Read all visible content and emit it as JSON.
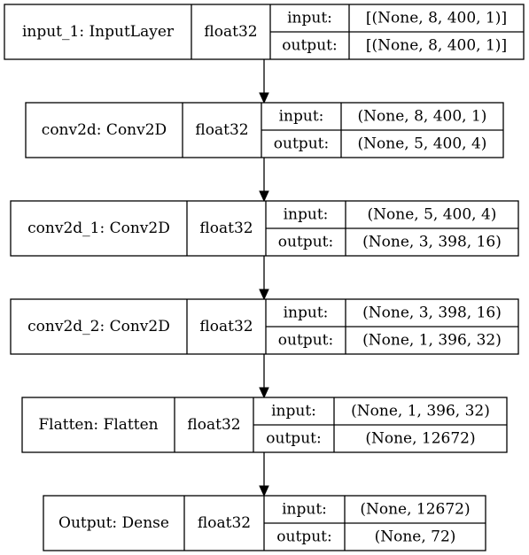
{
  "layers": [
    {
      "name": "input_1: InputLayer",
      "dtype": "float32",
      "input_label": "input:",
      "output_label": "output:",
      "input_shape": "[(None, 8, 400, 1)]",
      "output_shape": "[(None, 8, 400, 1)]"
    },
    {
      "name": "conv2d: Conv2D",
      "dtype": "float32",
      "input_label": "input:",
      "output_label": "output:",
      "input_shape": "(None, 8, 400, 1)",
      "output_shape": "(None, 5, 400, 4)"
    },
    {
      "name": "conv2d_1: Conv2D",
      "dtype": "float32",
      "input_label": "input:",
      "output_label": "output:",
      "input_shape": "(None, 5, 400, 4)",
      "output_shape": "(None, 3, 398, 16)"
    },
    {
      "name": "conv2d_2: Conv2D",
      "dtype": "float32",
      "input_label": "input:",
      "output_label": "output:",
      "input_shape": "(None, 3, 398, 16)",
      "output_shape": "(None, 1, 396, 32)"
    },
    {
      "name": "Flatten: Flatten",
      "dtype": "float32",
      "input_label": "input:",
      "output_label": "output:",
      "input_shape": "(None, 1, 396, 32)",
      "output_shape": "(None, 12672)"
    },
    {
      "name": "Output: Dense",
      "dtype": "float32",
      "input_label": "input:",
      "output_label": "output:",
      "input_shape": "(None, 12672)",
      "output_shape": "(None, 72)"
    }
  ]
}
